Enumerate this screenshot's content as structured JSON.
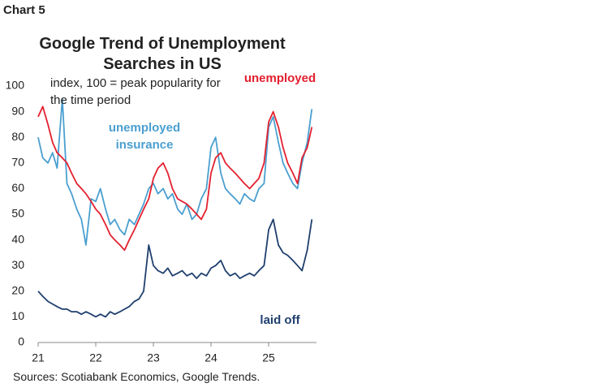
{
  "chart_data": {
    "type": "line",
    "label": "Chart 5",
    "title": "Google Trend of Unemployment Searches in US",
    "annotation": "index, 100 = peak popularity for the time period",
    "source": "Sources: Scotiabank Economics, Google Trends.",
    "x": [
      21,
      21.08,
      21.17,
      21.25,
      21.33,
      21.42,
      21.5,
      21.58,
      21.67,
      21.75,
      21.83,
      21.92,
      22,
      22.08,
      22.17,
      22.25,
      22.33,
      22.42,
      22.5,
      22.58,
      22.67,
      22.75,
      22.83,
      22.92,
      23,
      23.08,
      23.17,
      23.25,
      23.33,
      23.42,
      23.5,
      23.58,
      23.67,
      23.75,
      23.83,
      23.92,
      24,
      24.08,
      24.17,
      24.25,
      24.33,
      24.42,
      24.5,
      24.58,
      24.67,
      24.75,
      24.83,
      24.92,
      25,
      25.08,
      25.17,
      25.25,
      25.33,
      25.42,
      25.5,
      25.58,
      25.67,
      25.75
    ],
    "series": [
      {
        "name": "unemployed",
        "color": "#e3202f",
        "values": [
          88,
          92,
          85,
          78,
          74,
          72,
          70,
          66,
          62,
          60,
          58,
          55,
          52,
          50,
          46,
          42,
          40,
          38,
          36,
          40,
          44,
          48,
          52,
          56,
          64,
          68,
          70,
          66,
          60,
          56,
          55,
          54,
          52,
          50,
          48,
          52,
          66,
          72,
          74,
          70,
          68,
          66,
          64,
          62,
          60,
          62,
          64,
          70,
          86,
          90,
          84,
          76,
          70,
          66,
          62,
          72,
          76,
          84
        ]
      },
      {
        "name": "unemployed insurance",
        "color": "#4a9fd0",
        "values": [
          80,
          72,
          70,
          74,
          68,
          95,
          62,
          58,
          52,
          48,
          38,
          56,
          55,
          60,
          52,
          46,
          48,
          44,
          42,
          48,
          46,
          50,
          54,
          60,
          62,
          58,
          60,
          56,
          58,
          52,
          50,
          54,
          48,
          50,
          56,
          60,
          76,
          80,
          66,
          60,
          58,
          56,
          54,
          58,
          56,
          55,
          60,
          62,
          84,
          88,
          78,
          70,
          66,
          62,
          60,
          70,
          78,
          91
        ]
      },
      {
        "name": "laid off",
        "color": "#1f3f6e",
        "values": [
          20,
          18,
          16,
          15,
          14,
          13,
          13,
          12,
          12,
          11,
          12,
          11,
          10,
          11,
          10,
          12,
          11,
          12,
          13,
          14,
          16,
          17,
          20,
          38,
          30,
          28,
          27,
          29,
          26,
          27,
          28,
          26,
          27,
          25,
          27,
          26,
          29,
          30,
          32,
          28,
          26,
          27,
          25,
          26,
          27,
          26,
          28,
          30,
          44,
          48,
          38,
          35,
          34,
          32,
          30,
          28,
          36,
          48
        ]
      }
    ],
    "xlim": [
      21,
      25.83
    ],
    "xticks": [
      21,
      22,
      23,
      24,
      25
    ],
    "ylim": [
      0,
      100
    ],
    "yticks": [
      0,
      10,
      20,
      30,
      40,
      50,
      60,
      70,
      80,
      90,
      100
    ],
    "grid": false
  }
}
